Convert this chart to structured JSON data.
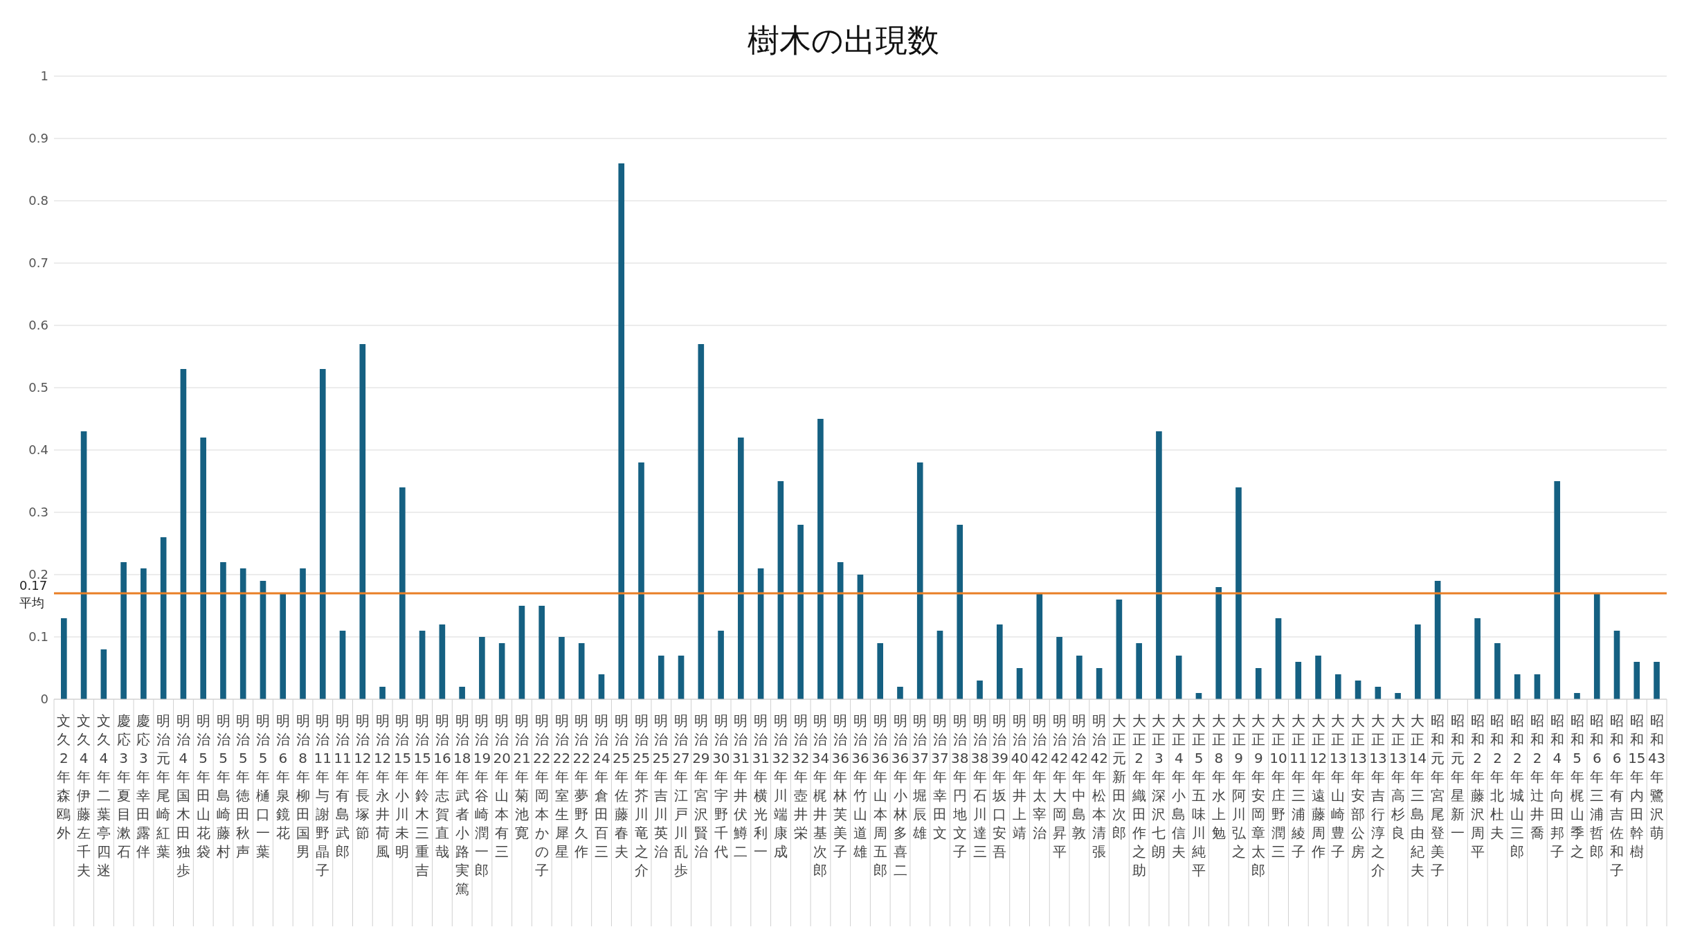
{
  "chart_data": {
    "type": "bar",
    "title": "樹木の出現数",
    "categories": [
      "文久2年森鴎外",
      "文久4年伊藤左千夫",
      "文久4年二葉亭四迷",
      "慶応3年夏目漱石",
      "慶応3年幸田露伴",
      "明治元年尾崎紅葉",
      "明治4年国木田独歩",
      "明治5年田山花袋",
      "明治5年島崎藤村",
      "明治5年徳田秋声",
      "明治5年樋口一葉",
      "明治6年泉鏡花",
      "明治8年柳田国男",
      "明治11年与謝野晶子",
      "明治11年有島武郎",
      "明治12年長塚節",
      "明治12年永井荷風",
      "明治15年小川未明",
      "明治15年鈴木三重吉",
      "明治16年志賀直哉",
      "明治18年武者小路実篤",
      "明治19年谷崎潤一郎",
      "明治20年山本有三",
      "明治21年菊池寛",
      "明治22年岡本かの子",
      "明治22年室生犀星",
      "明治22年夢野久作",
      "明治24年倉田百三",
      "明治25年佐藤春夫",
      "明治25年芥川竜之介",
      "明治25年吉川英治",
      "明治27年江戸川乱歩",
      "明治29年宮沢賢治",
      "明治30年宇野千代",
      "明治31年井伏鱒二",
      "明治31年横光利一",
      "明治32年川端康成",
      "明治32年壺井栄",
      "明治34年梶井基次郎",
      "明治36年林芙美子",
      "明治36年竹山道雄",
      "明治36年山本周五郎",
      "明治36年小林多喜二",
      "明治37年堀辰雄",
      "明治37年幸田文",
      "明治38年円地文子",
      "明治38年石川達三",
      "明治39年坂口安吾",
      "明治40年井上靖",
      "明治42年太宰治",
      "明治42年大岡昇平",
      "明治42年中島敦",
      "明治42年松本清張",
      "大正元新田次郎",
      "大正2年織田作之助",
      "大正3年深沢七朗",
      "大正4年小島信夫",
      "大正5年五味川純平",
      "大正8年水上勉",
      "大正9年阿川弘之",
      "大正9年安岡章太郎",
      "大正10年庄野潤三",
      "大正11年三浦綾子",
      "大正12年遠藤周作",
      "大正13年山崎豊子",
      "大正13年安部公房",
      "大正13年吉行淳之介",
      "大正13年高杉良",
      "大正14年三島由紀夫",
      "昭和元年宮尾登美子",
      "昭和元年星新一",
      "昭和2年藤沢周平",
      "昭和2年北杜夫",
      "昭和2年城山三郎",
      "昭和2年辻井喬",
      "昭和4年向田邦子",
      "昭和5年梶山季之",
      "昭和6年三浦哲郎",
      "昭和6年有吉佐和子",
      "昭和15年内田幹樹",
      "昭和43年鷺沢萌"
    ],
    "values": [
      0.13,
      0.43,
      0.08,
      0.22,
      0.21,
      0.26,
      0.53,
      0.42,
      0.22,
      0.21,
      0.19,
      0.17,
      0.21,
      0.53,
      0.11,
      0.57,
      0.02,
      0.34,
      0.11,
      0.12,
      0.02,
      0.1,
      0.09,
      0.15,
      0.15,
      0.1,
      0.09,
      0.04,
      0.86,
      0.38,
      0.07,
      0.07,
      0.57,
      0.11,
      0.42,
      0.21,
      0.35,
      0.28,
      0.45,
      0.22,
      0.2,
      0.09,
      0.02,
      0.38,
      0.11,
      0.28,
      0.03,
      0.12,
      0.05,
      0.17,
      0.1,
      0.07,
      0.05,
      0.16,
      0.09,
      0.43,
      0.07,
      0.01,
      0.18,
      0.34,
      0.05,
      0.13,
      0.06,
      0.07,
      0.04,
      0.03,
      0.02,
      0.01,
      0.12,
      0.19,
      0,
      0.13,
      0.09,
      0.04,
      0.04,
      0.35,
      0.01,
      0.17,
      0.11,
      0.06,
      0.06
    ],
    "color": "#156082",
    "ylim": [
      0,
      1
    ],
    "yticks": [
      0,
      0.1,
      0.2,
      0.3,
      0.4,
      0.5,
      0.6,
      0.7,
      0.8,
      0.9,
      1
    ],
    "grid": "y",
    "ref_lines": [
      {
        "axis": "y",
        "value": 0.17,
        "label": "平均",
        "color": "#e97f26"
      }
    ],
    "annotations": [
      "0.17"
    ]
  }
}
